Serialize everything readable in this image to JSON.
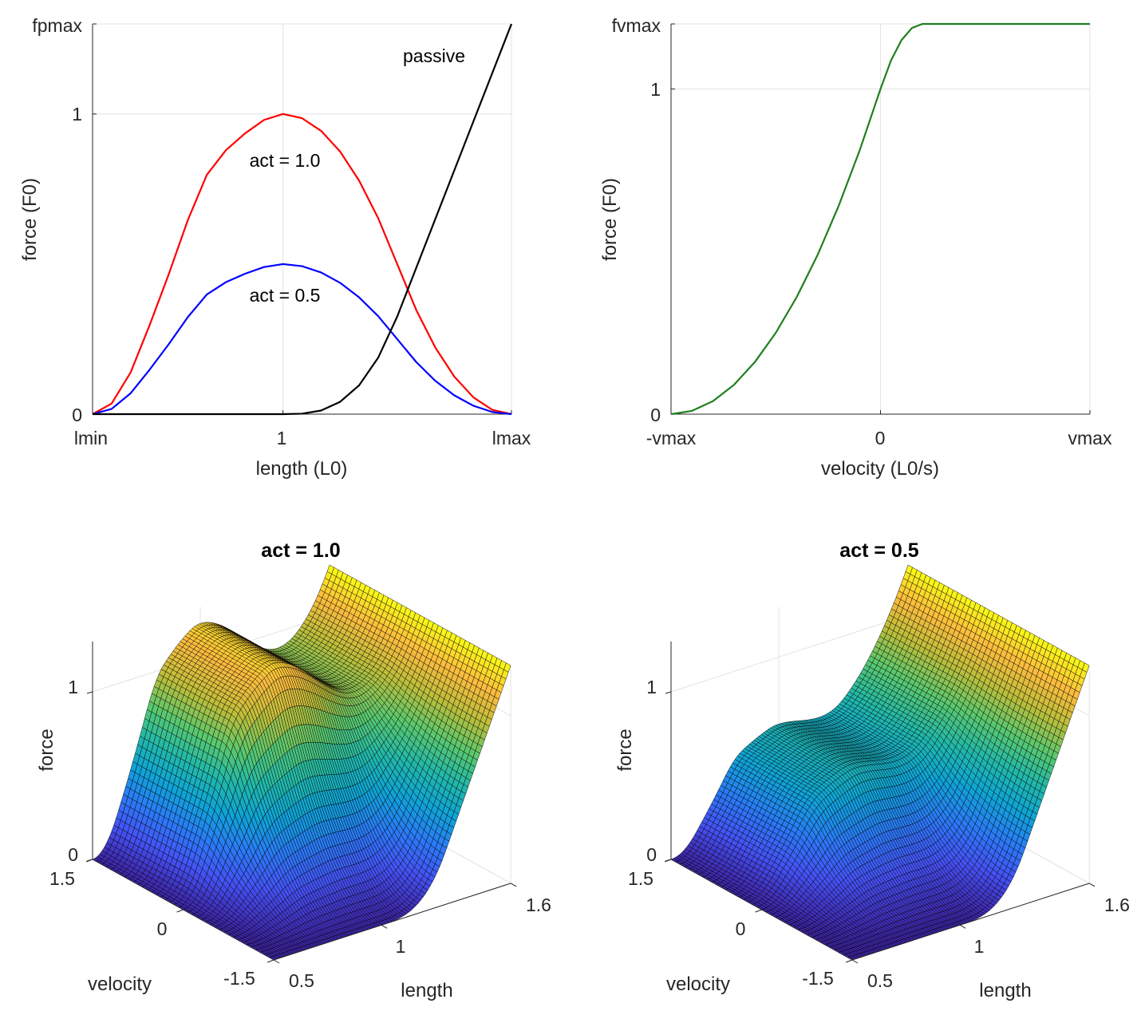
{
  "chart_data": [
    {
      "type": "line",
      "xlabel": "length (L0)",
      "ylabel": "force (F0)",
      "xlim": [
        0.5,
        1.6
      ],
      "ylim": [
        0,
        1.3
      ],
      "x_ticks": [
        0.5,
        1,
        1.6
      ],
      "x_tick_labels": [
        "lmin",
        "1",
        "lmax"
      ],
      "y_ticks": [
        0,
        1,
        1.3
      ],
      "y_tick_labels": [
        "0",
        "1",
        "fpmax"
      ],
      "grid": true,
      "x": [
        0.5,
        0.55,
        0.6,
        0.65,
        0.7,
        0.75,
        0.8,
        0.85,
        0.9,
        0.95,
        1.0,
        1.05,
        1.1,
        1.15,
        1.2,
        1.25,
        1.3,
        1.35,
        1.4,
        1.45,
        1.5,
        1.55,
        1.6
      ],
      "series": [
        {
          "name": "act = 1.0",
          "color": "#ff0000",
          "values": [
            0,
            0.035,
            0.139,
            0.297,
            0.466,
            0.646,
            0.797,
            0.879,
            0.935,
            0.98,
            1,
            0.986,
            0.944,
            0.875,
            0.778,
            0.653,
            0.5,
            0.347,
            0.222,
            0.125,
            0.056,
            0.014,
            0
          ]
        },
        {
          "name": "act = 0.5",
          "color": "#0000ff",
          "values": [
            0,
            0.0175,
            0.0695,
            0.1485,
            0.233,
            0.323,
            0.3985,
            0.4395,
            0.4675,
            0.49,
            0.5,
            0.493,
            0.472,
            0.4375,
            0.389,
            0.3265,
            0.25,
            0.1735,
            0.111,
            0.0625,
            0.028,
            0.007,
            0
          ]
        },
        {
          "name": "passive",
          "color": "#000000",
          "values": [
            0,
            0,
            0,
            0,
            0,
            0,
            0,
            0,
            0,
            0,
            0,
            0.0015,
            0.012,
            0.041,
            0.096,
            0.188,
            0.325,
            0.4875,
            0.65,
            0.8125,
            0.975,
            1.1375,
            1.3
          ]
        }
      ]
    },
    {
      "type": "line",
      "xlabel": "velocity (L0/s)",
      "ylabel": "force (F0)",
      "xlim": [
        -1,
        1
      ],
      "ylim": [
        0,
        1.2
      ],
      "x_ticks": [
        -1,
        0,
        1
      ],
      "x_tick_labels": [
        "-vmax",
        "0",
        "vmax"
      ],
      "y_ticks": [
        0,
        1,
        1.2
      ],
      "y_tick_labels": [
        "0",
        "1",
        "fvmax"
      ],
      "grid": true,
      "x": [
        -1,
        -0.9,
        -0.8,
        -0.7,
        -0.6,
        -0.5,
        -0.4,
        -0.3,
        -0.2,
        -0.1,
        0,
        0.05,
        0.1,
        0.15,
        0.2,
        1
      ],
      "series": [
        {
          "color": "#1f7f1f",
          "values": [
            0,
            0.01,
            0.04,
            0.09,
            0.16,
            0.25,
            0.36,
            0.49,
            0.64,
            0.81,
            1,
            1.0875,
            1.15,
            1.1875,
            1.2,
            1.2
          ]
        }
      ]
    },
    {
      "type": "surface",
      "title": "act = 1.0",
      "xlabel": "length",
      "ylabel": "velocity",
      "zlabel": "force",
      "x_ticks": [
        0.5,
        1,
        1.6
      ],
      "x_tick_labels": [
        "0.5",
        "1",
        "1.6"
      ],
      "y_ticks": [
        -1.5,
        0,
        1.5
      ],
      "y_tick_labels": [
        "-1.5",
        "0",
        "1.5"
      ],
      "z_ticks": [
        0,
        1
      ],
      "z_tick_labels": [
        "0",
        "1"
      ],
      "xlim": [
        0.5,
        1.6
      ],
      "ylim": [
        -1.5,
        1.5
      ],
      "zlim": [
        0,
        1.3
      ],
      "colormap": "parula",
      "model": {
        "act": 1.0,
        "lmin": 0.5,
        "lmax": 1.6,
        "vmax": 1.5,
        "fpmax": 1.3,
        "fvmax": 1.2
      }
    },
    {
      "type": "surface",
      "title": "act = 0.5",
      "xlabel": "length",
      "ylabel": "velocity",
      "zlabel": "force",
      "x_ticks": [
        0.5,
        1,
        1.6
      ],
      "x_tick_labels": [
        "0.5",
        "1",
        "1.6"
      ],
      "y_ticks": [
        -1.5,
        0,
        1.5
      ],
      "y_tick_labels": [
        "-1.5",
        "0",
        "1.5"
      ],
      "z_ticks": [
        0,
        1
      ],
      "z_tick_labels": [
        "0",
        "1"
      ],
      "xlim": [
        0.5,
        1.6
      ],
      "ylim": [
        -1.5,
        1.5
      ],
      "zlim": [
        0,
        1.3
      ],
      "colormap": "parula",
      "model": {
        "act": 0.5,
        "lmin": 0.5,
        "lmax": 1.6,
        "vmax": 1.5,
        "fpmax": 1.3,
        "fvmax": 1.2
      }
    }
  ]
}
